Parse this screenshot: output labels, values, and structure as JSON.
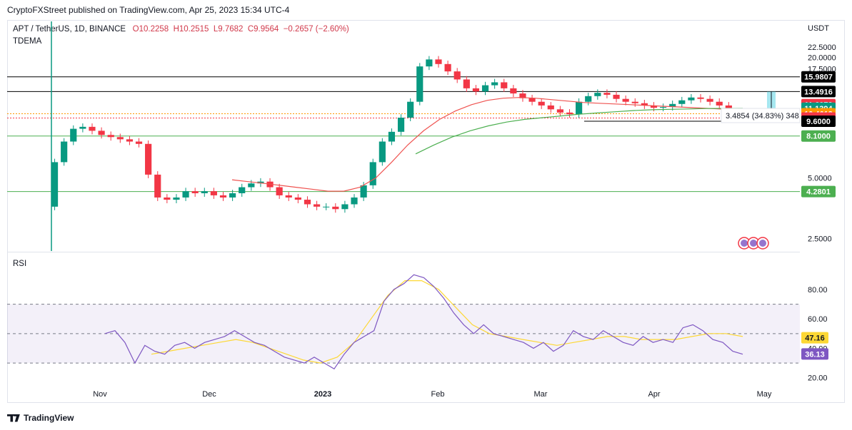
{
  "header": {
    "published": "CryptoFXStreet published on TradingView.com, Apr 25, 2023 15:34 UTC-4"
  },
  "branding": {
    "logo_text": "TradingView"
  },
  "legend": {
    "symbol": "APT / TetherUS, 1D, BINANCE",
    "open": "O10.2258",
    "high": "H10.2515",
    "low": "L9.7682",
    "close": "C9.9564",
    "change": "−0.2657 (−2.60%)",
    "indicator": "TDEMA"
  },
  "rsi_label": "RSI",
  "measure_label": "3.4854 (34.83%) 348",
  "colors": {
    "up": "#089981",
    "down": "#f23645",
    "ema_fast": "#ef5350",
    "ema_slow": "#4caf50",
    "rsi": "#7e57c2",
    "rsi_ma": "#fdd835"
  },
  "chart_data": [
    {
      "type": "candlestick",
      "title": "APT / TetherUS, 1D, BINANCE",
      "unit": "USDT",
      "y_scale": "log",
      "ylim": [
        2.2,
        24
      ],
      "y_ticks": [
        "22.5000",
        "20.0000",
        "17.5000",
        "5.0000",
        "2.5000"
      ],
      "x_ticks": [
        "Nov",
        "Dec",
        "2023",
        "Feb",
        "Mar",
        "Apr",
        "May"
      ],
      "price_levels": [
        {
          "label": "15.9807",
          "value": 15.98,
          "color": "#000000"
        },
        {
          "label": "13.4916",
          "value": 13.49,
          "color": "#000000"
        },
        {
          "label": "11.6072",
          "value": 11.61,
          "color": "#f23645"
        },
        {
          "label": "11.1394",
          "value": 11.14,
          "color": "#089981"
        },
        {
          "label": "10.4613",
          "value": 10.46,
          "color": "#ff9800"
        },
        {
          "label": "9.9564",
          "value": 9.96,
          "color": "#f23645"
        },
        {
          "label": "9.6000",
          "value": 9.6,
          "color": "#000000"
        },
        {
          "label": "8.1000",
          "value": 8.1,
          "color": "#4caf50"
        },
        {
          "label": "4.2801",
          "value": 4.28,
          "color": "#4caf50"
        }
      ],
      "series": [
        {
          "name": "APT / TetherUS",
          "close": [
            6.0,
            7.6,
            8.8,
            9.0,
            8.6,
            8.2,
            8.0,
            7.8,
            7.6,
            7.4,
            5.2,
            4.0,
            3.9,
            4.0,
            4.3,
            4.2,
            4.3,
            4.1,
            4.0,
            4.2,
            4.5,
            4.7,
            4.8,
            4.5,
            4.1,
            4.0,
            3.9,
            3.7,
            3.6,
            3.6,
            3.5,
            3.7,
            4.0,
            4.6,
            6.0,
            7.6,
            8.5,
            10.0,
            12.0,
            18.0,
            19.5,
            18.5,
            17.0,
            15.5,
            14.0,
            13.5,
            14.5,
            15.0,
            14.0,
            13.2,
            12.5,
            12.0,
            11.5,
            11.0,
            10.6,
            10.4,
            12.0,
            12.8,
            13.3,
            13.0,
            12.4,
            12.0,
            11.8,
            11.5,
            11.2,
            11.3,
            11.7,
            12.2,
            12.6,
            12.4,
            12.0,
            11.5,
            10.2,
            9.96
          ]
        },
        {
          "name": "TDEMA fast",
          "values": [
            4.9,
            4.8,
            4.7,
            4.6,
            4.5,
            4.4,
            4.3,
            4.3,
            4.5,
            5.0,
            6.0,
            7.3,
            8.6,
            9.8,
            10.8,
            11.6,
            12.2,
            12.5,
            12.6,
            12.5,
            12.3,
            12.1,
            11.9,
            11.8,
            11.7,
            11.6,
            11.5,
            11.4,
            11.3,
            11.2,
            11.1,
            11.0,
            10.9
          ]
        },
        {
          "name": "TDEMA slow",
          "values": [
            6.6,
            7.3,
            8.0,
            8.6,
            9.1,
            9.5,
            9.8,
            10.0,
            10.2,
            10.4,
            10.55,
            10.7,
            10.85,
            10.95,
            11.0,
            11.05,
            11.1,
            11.12,
            11.14
          ]
        }
      ]
    },
    {
      "type": "line",
      "title": "RSI",
      "ylim": [
        15,
        95
      ],
      "y_ticks": [
        "80.00",
        "60.00",
        "40.00",
        "20.00"
      ],
      "bands": [
        30,
        50,
        70
      ],
      "last_values": [
        "47.16",
        "36.13"
      ],
      "series": [
        {
          "name": "RSI",
          "values": [
            50,
            52,
            44,
            30,
            42,
            38,
            36,
            42,
            44,
            40,
            44,
            46,
            48,
            52,
            48,
            44,
            42,
            38,
            34,
            32,
            30,
            34,
            30,
            26,
            36,
            44,
            48,
            52,
            72,
            80,
            84,
            90,
            88,
            82,
            74,
            64,
            56,
            50,
            56,
            50,
            48,
            46,
            44,
            40,
            44,
            38,
            42,
            52,
            48,
            46,
            52,
            48,
            44,
            42,
            48,
            44,
            46,
            44,
            54,
            56,
            52,
            46,
            44,
            38,
            36
          ]
        },
        {
          "name": "RSI MA",
          "values": [
            36,
            38,
            40,
            42,
            44,
            46,
            44,
            40,
            36,
            32,
            30,
            34,
            44,
            60,
            76,
            86,
            86,
            80,
            68,
            56,
            50,
            48,
            46,
            44,
            42,
            44,
            46,
            48,
            48,
            46,
            46,
            46,
            48,
            50,
            50,
            48
          ]
        }
      ]
    }
  ]
}
